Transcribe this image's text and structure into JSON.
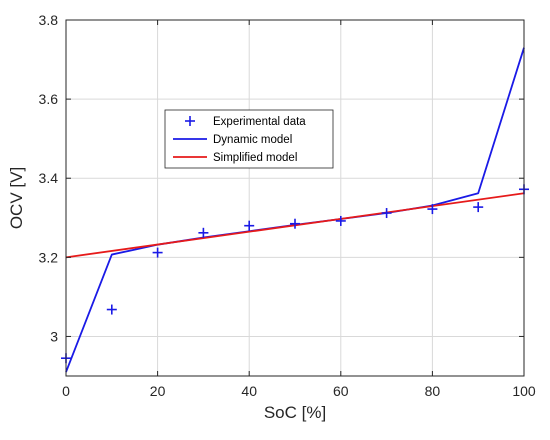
{
  "chart_data": {
    "type": "line",
    "title": "",
    "xlabel": "SoC [%]",
    "ylabel": "OCV [V]",
    "xlim": [
      0,
      100
    ],
    "ylim": [
      2.9,
      3.8
    ],
    "xticks": [
      0,
      20,
      40,
      60,
      80,
      100
    ],
    "yticks": [
      3,
      3.2,
      3.4,
      3.6,
      3.8
    ],
    "xtick_labels": [
      "0",
      "20",
      "40",
      "60",
      "80",
      "100"
    ],
    "ytick_labels": [
      "3",
      "3.2",
      "3.4",
      "3.6",
      "3.8"
    ],
    "grid": true,
    "legend_position": "upper-left-inside",
    "series": [
      {
        "name": "Experimental data",
        "style": "marker-plus",
        "color": "#1a1ae6",
        "x": [
          0,
          10,
          20,
          30,
          40,
          50,
          60,
          70,
          80,
          90,
          100
        ],
        "y": [
          2.945,
          3.068,
          3.212,
          3.262,
          3.28,
          3.285,
          3.292,
          3.312,
          3.322,
          3.327,
          3.372
        ]
      },
      {
        "name": "Dynamic model",
        "style": "line",
        "color": "#1a1ae6",
        "x": [
          0,
          10,
          20,
          30,
          40,
          50,
          60,
          70,
          80,
          90,
          100
        ],
        "y": [
          2.91,
          3.207,
          3.232,
          3.25,
          3.266,
          3.282,
          3.297,
          3.312,
          3.331,
          3.362,
          3.73
        ]
      },
      {
        "name": "Simplified model",
        "style": "line",
        "color": "#e61a1a",
        "x": [
          0,
          100
        ],
        "y": [
          3.2,
          3.362
        ]
      }
    ]
  }
}
